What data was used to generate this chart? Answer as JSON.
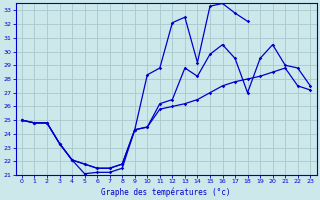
{
  "xlabel": "Graphe des températures (°c)",
  "background_color": "#cce8ea",
  "grid_color": "#aac8cc",
  "line_color": "#0000cc",
  "xlim": [
    -0.5,
    23.5
  ],
  "ylim": [
    21,
    33.5
  ],
  "yticks": [
    21,
    22,
    23,
    24,
    25,
    26,
    27,
    28,
    29,
    30,
    31,
    32,
    33
  ],
  "xticks": [
    0,
    1,
    2,
    3,
    4,
    5,
    6,
    7,
    8,
    9,
    10,
    11,
    12,
    13,
    14,
    15,
    16,
    17,
    18,
    19,
    20,
    21,
    22,
    23
  ],
  "line_upper_x": [
    0,
    1,
    2,
    3,
    4,
    5,
    6,
    7,
    8,
    9,
    10,
    11,
    12,
    13,
    14,
    15,
    16,
    17,
    18
  ],
  "line_upper_y": [
    25.0,
    24.8,
    24.8,
    23.3,
    22.1,
    21.8,
    21.5,
    21.5,
    21.8,
    24.3,
    28.3,
    28.8,
    32.1,
    32.5,
    29.2,
    33.3,
    33.5,
    32.8,
    32.2
  ],
  "line_middle_x": [
    0,
    1,
    2,
    3,
    4,
    5,
    6,
    7,
    8,
    9,
    10,
    11,
    12,
    13,
    14,
    15,
    16,
    17,
    18,
    19,
    20,
    21,
    22,
    23
  ],
  "line_middle_y": [
    25.0,
    24.8,
    24.8,
    23.3,
    22.1,
    21.8,
    21.5,
    21.5,
    21.8,
    24.3,
    24.5,
    26.2,
    26.5,
    28.8,
    28.2,
    29.8,
    30.5,
    29.5,
    27.0,
    29.5,
    30.5,
    29.0,
    28.8,
    27.5
  ],
  "line_lower_x": [
    0,
    1,
    2,
    3,
    4,
    5,
    6,
    7,
    8,
    9,
    10,
    11,
    12,
    13,
    14,
    15,
    16,
    17,
    18,
    19,
    20,
    21,
    22,
    23
  ],
  "line_lower_y": [
    25.0,
    24.8,
    24.8,
    23.3,
    22.1,
    21.1,
    21.2,
    21.2,
    21.5,
    24.3,
    24.5,
    25.8,
    26.0,
    26.2,
    26.5,
    27.0,
    27.5,
    27.8,
    28.0,
    28.2,
    28.5,
    28.8,
    27.5,
    27.2
  ]
}
